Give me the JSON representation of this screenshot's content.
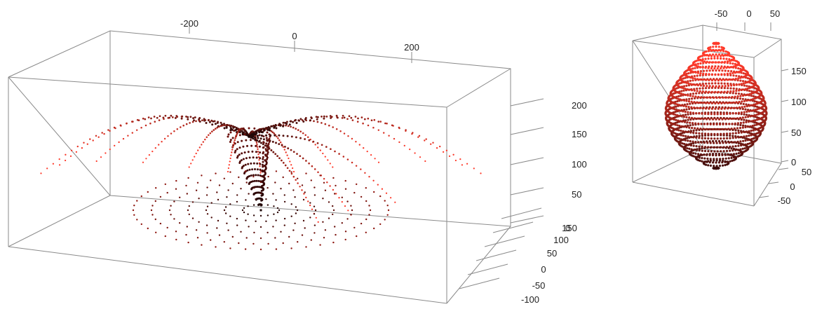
{
  "chart_data": [
    {
      "type": "scatter",
      "title": "",
      "colors": {
        "point_low": "#1a0505",
        "point_high": "#ff3a2a",
        "box": "#8a8a8a"
      },
      "axes": {
        "top": {
          "ticks": [
            -200,
            0,
            200
          ]
        },
        "z": {
          "ticks": [
            0,
            50,
            100,
            150,
            200
          ]
        },
        "depth": {
          "ticks": [
            -100,
            -50,
            0,
            50,
            100,
            150
          ]
        }
      },
      "strands": [
        {
          "angle_deg": -180,
          "reach": 0.95
        },
        {
          "angle_deg": -165,
          "reach": 0.9
        },
        {
          "angle_deg": -150,
          "reach": 0.82
        },
        {
          "angle_deg": -135,
          "reach": 0.72
        },
        {
          "angle_deg": -120,
          "reach": 0.62
        },
        {
          "angle_deg": -105,
          "reach": 0.55
        },
        {
          "angle_deg": -90,
          "reach": 0.5
        },
        {
          "angle_deg": -75,
          "reach": 0.55
        },
        {
          "angle_deg": -60,
          "reach": 0.62
        },
        {
          "angle_deg": -45,
          "reach": 0.72
        },
        {
          "angle_deg": -30,
          "reach": 0.82
        },
        {
          "angle_deg": -15,
          "reach": 0.9
        },
        {
          "angle_deg": 0,
          "reach": 0.95
        },
        {
          "angle_deg": 15,
          "reach": 0.6
        },
        {
          "angle_deg": 30,
          "reach": 0.45
        },
        {
          "angle_deg": 45,
          "reach": 0.35
        }
      ]
    },
    {
      "type": "scatter",
      "title": "",
      "colors": {
        "point_low": "#1a0505",
        "point_high": "#ff3a2a",
        "box": "#8a8a8a"
      },
      "axes": {
        "top": {
          "ticks": [
            -50,
            0,
            50
          ]
        },
        "z": {
          "ticks": [
            0,
            50,
            100,
            150
          ]
        },
        "depth": {
          "ticks": [
            -50,
            0,
            50
          ]
        }
      },
      "rings": 26
    }
  ]
}
